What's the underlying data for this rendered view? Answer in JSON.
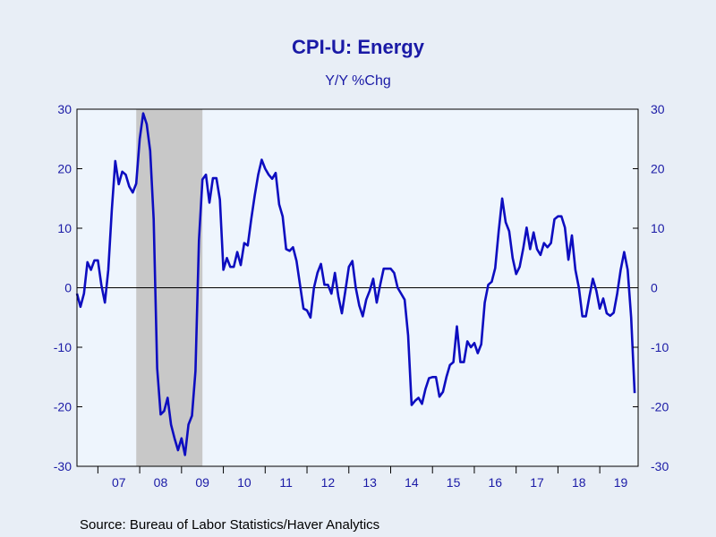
{
  "chart_data": {
    "type": "line",
    "title": "CPI-U: Energy",
    "subtitle": "Y/Y %Chg",
    "source": "Source:  Bureau of Labor Statistics/Haver Analytics",
    "ylim": [
      -30,
      30
    ],
    "yticks": [
      -30,
      -20,
      -10,
      0,
      10,
      20,
      30
    ],
    "ytick_labels": [
      "-30",
      "-20",
      "-10",
      "0",
      "10",
      "20",
      "30"
    ],
    "x_range": [
      2006.5,
      2019.917
    ],
    "x_tick_labels": [
      "07",
      "08",
      "09",
      "10",
      "11",
      "12",
      "13",
      "14",
      "15",
      "16",
      "17",
      "18",
      "19"
    ],
    "recession": [
      2007.917,
      2009.5
    ],
    "colors": {
      "line": "#0d0dc0",
      "recession": "#c8c8c8",
      "plot_bg": "#eef5fd",
      "page_bg": "#e8eef6",
      "text": "#1a1aa6"
    },
    "series": [
      {
        "start": "2006-07",
        "frequency": "monthly",
        "values": [
          -1.0,
          -3.2,
          -1.0,
          4.3,
          3.0,
          4.6,
          4.6,
          0.4,
          -2.5,
          3.0,
          13.0,
          21.3,
          17.4,
          19.5,
          19.0,
          17.0,
          16.0,
          17.5,
          25.0,
          29.3,
          27.5,
          23.0,
          11.5,
          -13.5,
          -21.3,
          -20.7,
          -18.5,
          -23.0,
          -25.3,
          -27.3,
          -25.3,
          -28.1,
          -23.0,
          -21.5,
          -14.0,
          8.0,
          18.2,
          19.0,
          14.3,
          18.4,
          18.4,
          14.8,
          3.0,
          5.0,
          3.5,
          3.5,
          6.0,
          3.8,
          7.5,
          7.1,
          11.5,
          15.5,
          19.0,
          21.5,
          20.0,
          19.0,
          18.3,
          19.3,
          14.0,
          12.0,
          6.5,
          6.2,
          6.8,
          4.5,
          0.5,
          -3.5,
          -3.8,
          -5.0,
          0.0,
          2.5,
          4.0,
          0.5,
          0.5,
          -1.0,
          2.5,
          -1.5,
          -4.3,
          -0.5,
          3.5,
          4.5,
          0.0,
          -3.0,
          -4.8,
          -2.0,
          -0.5,
          1.5,
          -2.5,
          0.5,
          3.2,
          3.2,
          3.2,
          2.5,
          0.0,
          -1.0,
          -2.0,
          -8.0,
          -19.7,
          -19.0,
          -18.5,
          -19.5,
          -17.0,
          -15.2,
          -15.0,
          -15.0,
          -18.3,
          -17.5,
          -15.0,
          -13.0,
          -12.5,
          -6.5,
          -12.5,
          -12.5,
          -9.0,
          -10.0,
          -9.3,
          -11.0,
          -9.5,
          -2.5,
          0.5,
          1.0,
          3.3,
          9.5,
          15.0,
          11.0,
          9.5,
          5.0,
          2.3,
          3.5,
          6.5,
          10.1,
          6.5,
          9.3,
          6.5,
          5.5,
          7.5,
          6.8,
          7.5,
          11.5,
          12.0,
          12.0,
          10.1,
          4.7,
          8.8,
          3.0,
          0.0,
          -4.8,
          -4.8,
          -1.5,
          1.5,
          -0.5,
          -3.5,
          -1.8,
          -4.3,
          -4.7,
          -4.2,
          -1.0,
          3.0,
          6.0,
          3.0,
          -5.0,
          -17.7
        ]
      }
    ]
  }
}
